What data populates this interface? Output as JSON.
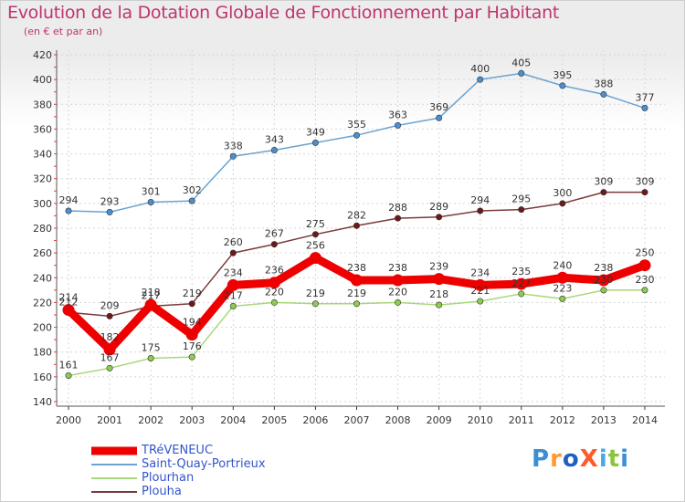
{
  "title": "Evolution de la Dotation Globale de Fonctionnement par Habitant",
  "subtitle": "(en € et par an)",
  "logo": {
    "text": "ProXiti",
    "colors": [
      "#3b8fd6",
      "#ff9a2e",
      "#1e5fbf",
      "#ff5a2a",
      "#4aa8e8",
      "#8cc63f",
      "#3b8fd6"
    ]
  },
  "chart_data": {
    "type": "line",
    "x": [
      2000,
      2001,
      2002,
      2003,
      2004,
      2005,
      2006,
      2007,
      2008,
      2009,
      2010,
      2011,
      2012,
      2013,
      2014
    ],
    "ylim": [
      140,
      420
    ],
    "yticks": [
      140,
      160,
      180,
      200,
      220,
      240,
      260,
      280,
      300,
      320,
      340,
      360,
      380,
      400,
      420
    ],
    "grid": true,
    "legend_position": "bottom-left",
    "series": [
      {
        "name": "Saint-Quay-Portrieux",
        "color": "#6ba3d0",
        "marker_color": "#4a90d0",
        "values": [
          294,
          293,
          301,
          302,
          338,
          343,
          349,
          355,
          363,
          369,
          400,
          405,
          395,
          388,
          377
        ]
      },
      {
        "name": "Plouha",
        "color": "#7b3a3a",
        "marker_color": "#6b1a1a",
        "values": [
          212,
          209,
          217,
          219,
          260,
          267,
          275,
          282,
          288,
          289,
          294,
          295,
          300,
          309,
          309
        ]
      },
      {
        "name": "Plourhan",
        "color": "#a8d87a",
        "marker_color": "#8ccc50",
        "values": [
          161,
          167,
          175,
          176,
          217,
          220,
          219,
          219,
          220,
          218,
          221,
          227,
          223,
          230,
          230
        ]
      },
      {
        "name": "TRéVENEUC",
        "color": "#ee0000",
        "marker_color": "#ee0000",
        "thick": true,
        "values": [
          214,
          182,
          218,
          194,
          234,
          236,
          256,
          238,
          238,
          239,
          234,
          235,
          240,
          238,
          250
        ]
      }
    ],
    "legend_order": [
      "TRéVENEUC",
      "Saint-Quay-Portrieux",
      "Plourhan",
      "Plouha"
    ]
  }
}
